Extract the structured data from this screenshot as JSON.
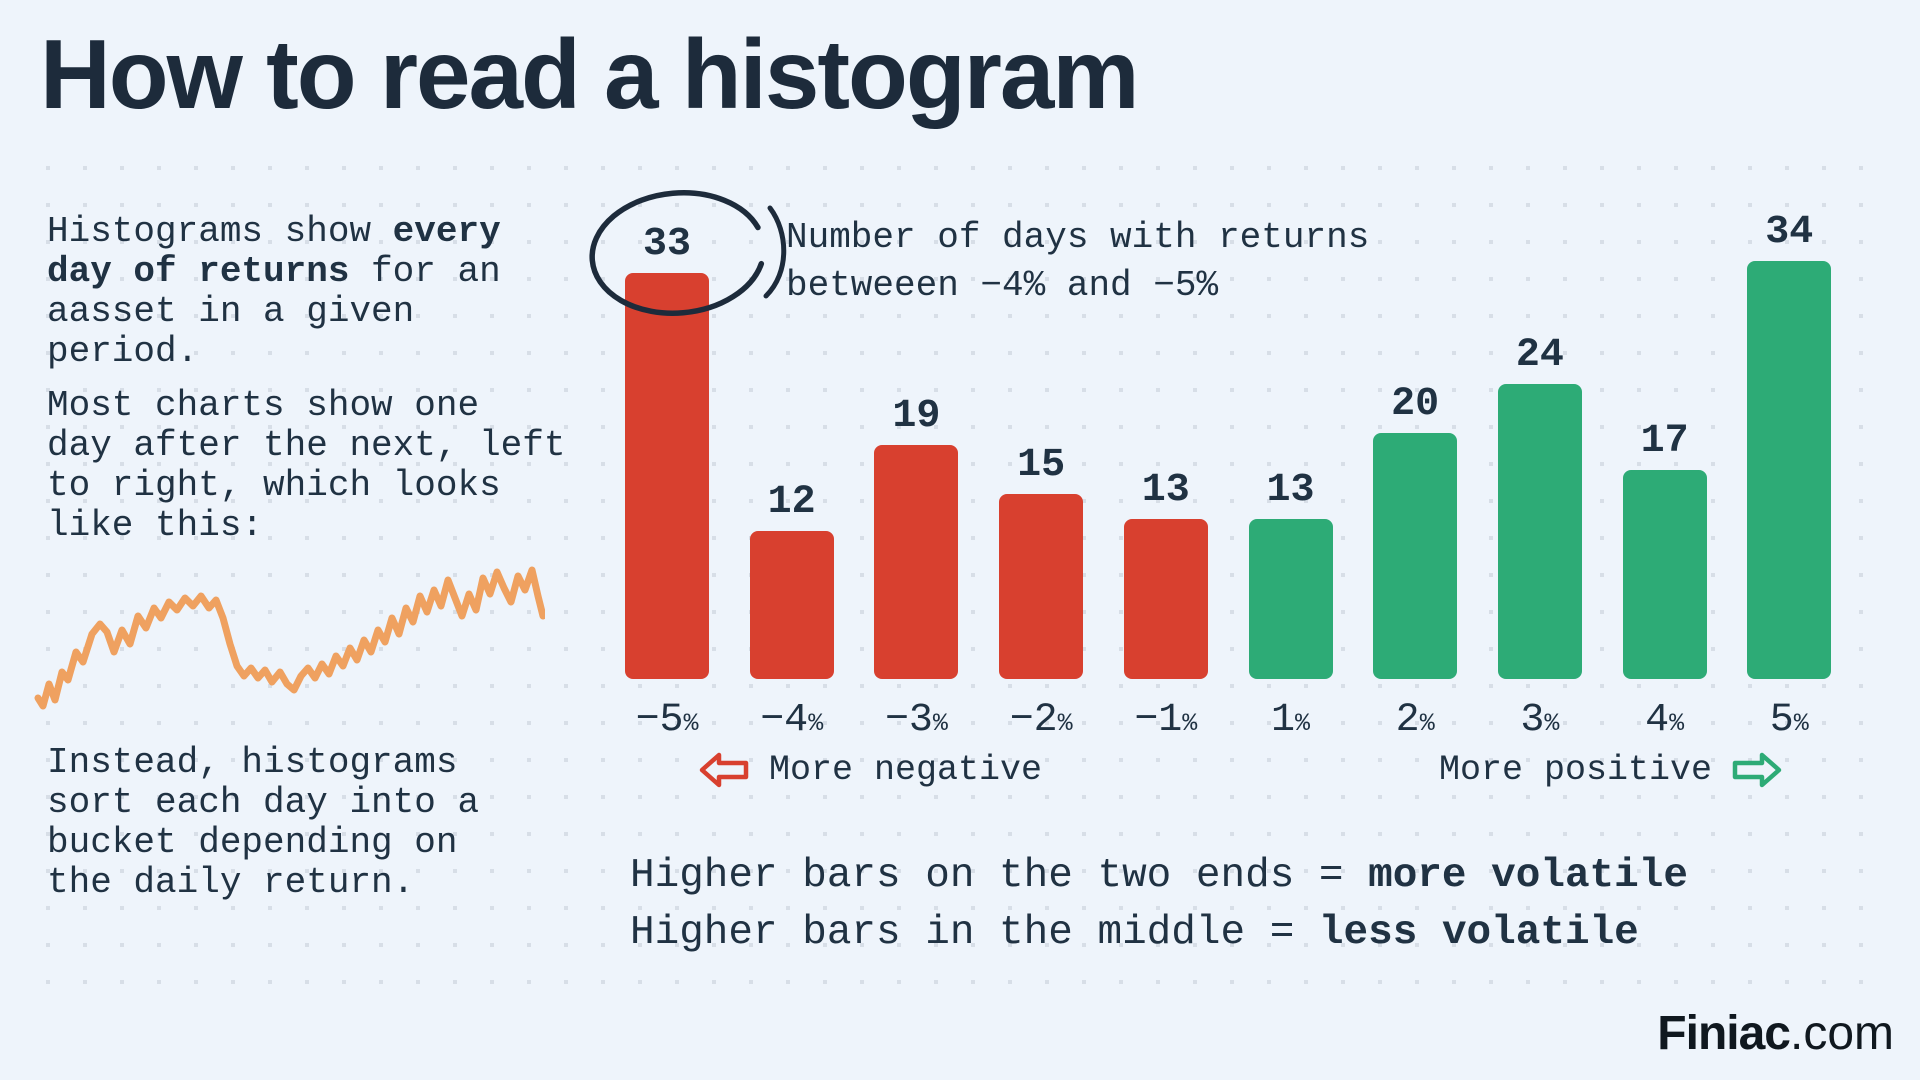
{
  "title": "How to read a histogram",
  "intro": {
    "para1": [
      [
        {
          "t": "Histograms show "
        },
        {
          "t": "every",
          "b": 1
        }
      ],
      [
        {
          "t": "day of returns",
          "b": 1
        },
        {
          "t": " for an"
        }
      ],
      [
        {
          "t": "aasset in a given"
        }
      ],
      [
        {
          "t": "period."
        }
      ]
    ],
    "para2": [
      [
        {
          "t": "Most charts show one"
        }
      ],
      [
        {
          "t": "day after the next, left"
        }
      ],
      [
        {
          "t": "to right, which looks"
        }
      ],
      [
        {
          "t": "like this:"
        }
      ]
    ],
    "para3": [
      [
        {
          "t": "Instead, histograms"
        }
      ],
      [
        {
          "t": "sort each day into a"
        }
      ],
      [
        {
          "t": "bucket depending on"
        }
      ],
      [
        {
          "t": "the daily return."
        }
      ]
    ]
  },
  "callout": [
    [
      {
        "t": "Number of days with returns"
      }
    ],
    [
      {
        "t": "betweeen −4% and −5%"
      }
    ]
  ],
  "axis_notes": {
    "negative": "More negative",
    "positive": "More positive"
  },
  "legend": [
    [
      {
        "t": "Higher bars on the two ends = "
      },
      {
        "t": "more volatile",
        "b": 1
      }
    ],
    [
      {
        "t": "Higher bars in the middle = "
      },
      {
        "t": "less volatile",
        "b": 1
      }
    ]
  ],
  "logo": {
    "brand": "Finiac",
    "suffix": ".com"
  },
  "colors": {
    "background": "#eef4fb",
    "ink": "#203243",
    "title": "#1d2b3b",
    "negative": "#d8402f",
    "positive": "#2dab76",
    "line": "#efa160",
    "dots": "#d7dee7",
    "logo": "#10181f"
  },
  "chart_data": {
    "type": "bar",
    "title": "",
    "xlabel": "",
    "ylabel": "",
    "categories": [
      "−5%",
      "−4%",
      "−3%",
      "−2%",
      "−1%",
      "1%",
      "2%",
      "3%",
      "4%",
      "5%"
    ],
    "values": [
      33,
      12,
      19,
      15,
      13,
      13,
      20,
      24,
      17,
      34
    ],
    "bar_colors": [
      "#d8402f",
      "#d8402f",
      "#d8402f",
      "#d8402f",
      "#d8402f",
      "#2dab76",
      "#2dab76",
      "#2dab76",
      "#2dab76",
      "#2dab76"
    ],
    "highlight": {
      "circled_category": "−5%",
      "circled_value": 33
    }
  }
}
